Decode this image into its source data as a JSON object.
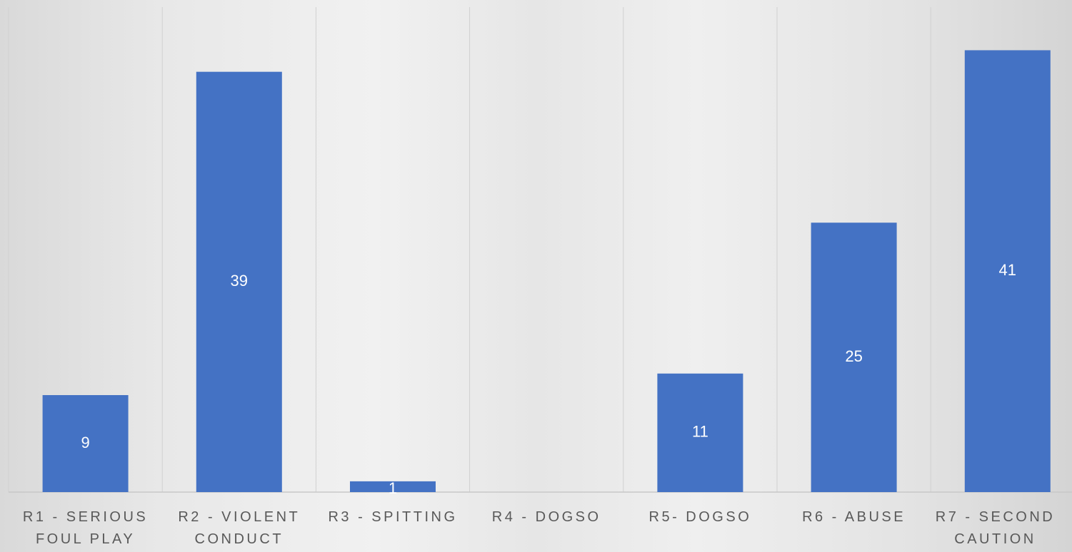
{
  "chart_data": {
    "type": "bar",
    "categories": [
      "R1 - SERIOUS FOUL PLAY",
      "R2 - VIOLENT CONDUCT",
      "R3 - SPITTING",
      "R4 - DOGSO",
      "R5- DOGSO",
      "R6 - ABUSE",
      "R7 - SECOND CAUTION"
    ],
    "values": [
      9,
      39,
      1,
      null,
      11,
      25,
      41
    ],
    "color": "#4472c4",
    "ylim": [
      0,
      45
    ]
  }
}
